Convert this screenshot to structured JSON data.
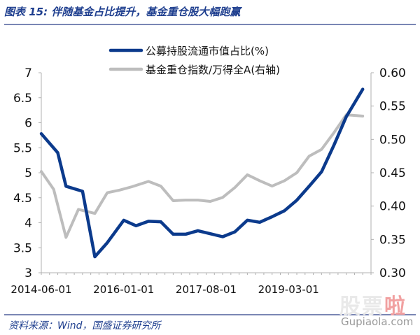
{
  "figure_title": "图表 15:  伴随基金占比提升，基金重仓股大幅跑赢",
  "source_note": "资料来源：Wind，国盛证券研究所",
  "watermark": {
    "brand_part1": "股票",
    "brand_part2": "啦",
    "domain": "Gupiaola.com"
  },
  "colors": {
    "navy": "#0b3a8c",
    "gray": "#bdbdbd",
    "axis": "#b0b0b0",
    "title": "#1f3f8f"
  },
  "chart_data": {
    "type": "line",
    "x_tick_labels": [
      "2014-06-01",
      "2016-01-01",
      "2017-08-01",
      "2019-03-01"
    ],
    "x_tick_index": [
      0,
      10,
      20,
      30
    ],
    "n_points": 40,
    "y_left": {
      "ticks": [
        "3",
        "3.5",
        "4",
        "4.5",
        "5",
        "5.5",
        "6",
        "6.5",
        "7"
      ],
      "lim": [
        3,
        7
      ]
    },
    "y_right": {
      "ticks": [
        "0.30",
        "0.35",
        "0.40",
        "0.45",
        "0.50",
        "0.55",
        "0.60"
      ],
      "lim": [
        0.3,
        0.6
      ]
    },
    "legend_position": "top",
    "series": [
      {
        "name": "公募持股流通市值占比(%)",
        "axis": "left",
        "color": "#0b3a8c",
        "points": [
          [
            0,
            5.78
          ],
          [
            2,
            5.4
          ],
          [
            3,
            4.73
          ],
          [
            5,
            4.63
          ],
          [
            6.5,
            3.32
          ],
          [
            8,
            3.6
          ],
          [
            10,
            4.05
          ],
          [
            11.5,
            3.94
          ],
          [
            13,
            4.03
          ],
          [
            14.5,
            4.02
          ],
          [
            16,
            3.77
          ],
          [
            17.5,
            3.77
          ],
          [
            19,
            3.84
          ],
          [
            20.5,
            3.78
          ],
          [
            22,
            3.72
          ],
          [
            23.5,
            3.82
          ],
          [
            25,
            4.05
          ],
          [
            26.5,
            4.01
          ],
          [
            28,
            4.12
          ],
          [
            29.5,
            4.24
          ],
          [
            31,
            4.45
          ],
          [
            32.5,
            4.73
          ],
          [
            34,
            5.02
          ],
          [
            35.5,
            5.55
          ],
          [
            37,
            6.12
          ],
          [
            39,
            6.67
          ]
        ]
      },
      {
        "name": "基金重仓指数/万得全A(右轴)",
        "axis": "right",
        "color": "#bdbdbd",
        "points": [
          [
            0,
            0.452
          ],
          [
            1.5,
            0.425
          ],
          [
            3,
            0.353
          ],
          [
            4.5,
            0.395
          ],
          [
            6.5,
            0.389
          ],
          [
            8,
            0.42
          ],
          [
            9.5,
            0.424
          ],
          [
            11,
            0.429
          ],
          [
            13,
            0.437
          ],
          [
            14.5,
            0.43
          ],
          [
            16,
            0.408
          ],
          [
            17.5,
            0.409
          ],
          [
            19,
            0.409
          ],
          [
            20.5,
            0.407
          ],
          [
            22,
            0.413
          ],
          [
            23.5,
            0.428
          ],
          [
            25,
            0.447
          ],
          [
            26.5,
            0.438
          ],
          [
            28,
            0.43
          ],
          [
            29.5,
            0.438
          ],
          [
            31,
            0.45
          ],
          [
            32.5,
            0.475
          ],
          [
            34,
            0.485
          ],
          [
            35.5,
            0.51
          ],
          [
            37,
            0.537
          ],
          [
            39,
            0.535
          ]
        ]
      }
    ]
  }
}
